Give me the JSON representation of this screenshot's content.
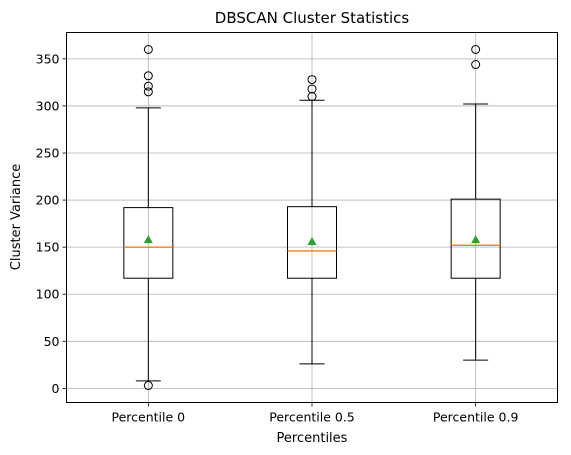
{
  "chart_data": {
    "type": "box",
    "title": "DBSCAN Cluster Statistics",
    "xlabel": "Percentiles",
    "ylabel": "Cluster Variance",
    "categories": [
      "Percentile 0",
      "Percentile 0.5",
      "Percentile 0.9"
    ],
    "ylim": [
      -15,
      378
    ],
    "yticks": [
      0,
      50,
      100,
      150,
      200,
      250,
      300,
      350
    ],
    "grid": true,
    "boxes": [
      {
        "category": "Percentile 0",
        "whisker_low": 8,
        "q1": 117,
        "median": 150,
        "q3": 192,
        "whisker_high": 298,
        "mean": 158,
        "outliers": [
          3,
          315,
          321,
          332,
          360
        ]
      },
      {
        "category": "Percentile 0.5",
        "whisker_low": 26,
        "q1": 117,
        "median": 146,
        "q3": 193,
        "whisker_high": 306,
        "mean": 156,
        "outliers": [
          310,
          318,
          328
        ]
      },
      {
        "category": "Percentile 0.9",
        "whisker_low": 30,
        "q1": 117,
        "median": 152,
        "q3": 201,
        "whisker_high": 302,
        "mean": 158,
        "outliers": [
          344,
          360
        ]
      }
    ],
    "colors": {
      "box": "#000000",
      "median": "#ff7f0e",
      "mean": "#2ca02c",
      "grid": "#b0b0b0"
    }
  }
}
